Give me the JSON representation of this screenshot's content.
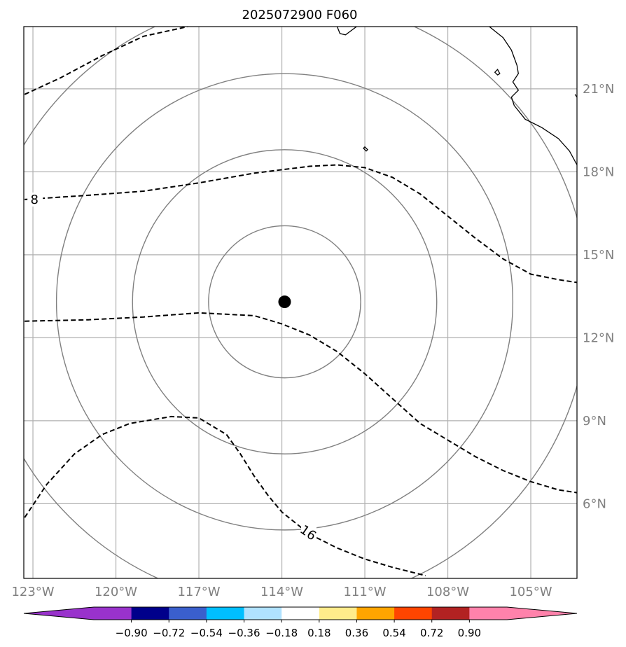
{
  "chart_data": {
    "type": "map",
    "title": "2025072900 F060",
    "x_ticks": [
      -123,
      -120,
      -117,
      -114,
      -111,
      -108,
      -105
    ],
    "x_tick_labels": [
      "123°W",
      "120°W",
      "117°W",
      "114°W",
      "111°W",
      "108°W",
      "105°W"
    ],
    "y_ticks": [
      6,
      9,
      12,
      15,
      18,
      21
    ],
    "y_tick_labels": [
      "6°N",
      "9°N",
      "12°N",
      "15°N",
      "18°N",
      "21°N"
    ],
    "xlim": [
      -123.33,
      -103.33
    ],
    "ylim": [
      3.3,
      23.25
    ],
    "grid": true,
    "center": {
      "lon": -113.9,
      "lat": 13.3
    },
    "range_rings_deg": [
      2.75,
      5.5,
      8.25,
      11.0
    ],
    "contours": [
      {
        "label": "8",
        "dashed": true,
        "points": [
          [
            -123.3,
            17.0
          ],
          [
            -121.0,
            17.15
          ],
          [
            -119.0,
            17.3
          ],
          [
            -117.0,
            17.6
          ],
          [
            -115.0,
            17.95
          ],
          [
            -113.0,
            18.2
          ],
          [
            -112.0,
            18.25
          ],
          [
            -111.0,
            18.15
          ],
          [
            -110.0,
            17.8
          ],
          [
            -109.0,
            17.2
          ],
          [
            -108.0,
            16.4
          ],
          [
            -107.0,
            15.6
          ],
          [
            -106.0,
            14.85
          ],
          [
            -105.0,
            14.3
          ],
          [
            -104.0,
            14.1
          ],
          [
            -103.33,
            14.0
          ]
        ]
      },
      {
        "label": "",
        "dashed": true,
        "points": [
          [
            -123.3,
            12.6
          ],
          [
            -121.0,
            12.65
          ],
          [
            -119.0,
            12.75
          ],
          [
            -117.0,
            12.9
          ],
          [
            -115.0,
            12.8
          ],
          [
            -114.0,
            12.5
          ],
          [
            -113.0,
            12.1
          ],
          [
            -112.0,
            11.5
          ],
          [
            -111.0,
            10.7
          ],
          [
            -110.0,
            9.8
          ],
          [
            -109.0,
            8.9
          ],
          [
            -108.0,
            8.3
          ],
          [
            -107.0,
            7.7
          ],
          [
            -106.0,
            7.2
          ],
          [
            -105.0,
            6.8
          ],
          [
            -104.0,
            6.5
          ],
          [
            -103.33,
            6.4
          ]
        ]
      },
      {
        "label": "16",
        "dashed": true,
        "points": [
          [
            -123.3,
            5.5
          ],
          [
            -122.5,
            6.7
          ],
          [
            -121.5,
            7.8
          ],
          [
            -120.5,
            8.5
          ],
          [
            -119.5,
            8.9
          ],
          [
            -118.0,
            9.15
          ],
          [
            -117.0,
            9.1
          ],
          [
            -116.0,
            8.5
          ],
          [
            -115.5,
            7.8
          ],
          [
            -115.0,
            7.0
          ],
          [
            -114.5,
            6.3
          ],
          [
            -114.0,
            5.7
          ],
          [
            -113.0,
            4.9
          ],
          [
            -112.0,
            4.4
          ],
          [
            -111.0,
            4.0
          ],
          [
            -110.0,
            3.7
          ],
          [
            -108.8,
            3.4
          ]
        ]
      },
      {
        "label": "",
        "dashed": true,
        "points": [
          [
            -123.3,
            20.8
          ],
          [
            -122.0,
            21.4
          ],
          [
            -120.5,
            22.2
          ],
          [
            -119.0,
            22.9
          ],
          [
            -117.4,
            23.25
          ]
        ]
      }
    ],
    "coastlines": [
      {
        "points": [
          [
            -106.5,
            23.25
          ],
          [
            -106.0,
            22.85
          ],
          [
            -105.7,
            22.4
          ],
          [
            -105.5,
            21.85
          ],
          [
            -105.45,
            21.55
          ],
          [
            -105.65,
            21.25
          ],
          [
            -105.45,
            20.95
          ],
          [
            -105.7,
            20.7
          ],
          [
            -105.6,
            20.4
          ],
          [
            -105.2,
            19.9
          ],
          [
            -104.6,
            19.6
          ],
          [
            -104.0,
            19.2
          ],
          [
            -103.6,
            18.75
          ],
          [
            -103.33,
            18.25
          ]
        ]
      },
      {
        "points": [
          [
            -112.0,
            23.25
          ],
          [
            -111.9,
            23.0
          ],
          [
            -111.7,
            22.95
          ],
          [
            -111.5,
            23.1
          ],
          [
            -111.3,
            23.25
          ]
        ]
      },
      {
        "points": [
          [
            -103.4,
            20.8
          ],
          [
            -103.33,
            20.7
          ]
        ]
      }
    ],
    "islands": [
      {
        "points": [
          [
            -106.3,
            21.6
          ],
          [
            -106.2,
            21.5
          ],
          [
            -106.12,
            21.55
          ],
          [
            -106.2,
            21.7
          ],
          [
            -106.3,
            21.6
          ]
        ]
      },
      {
        "points": [
          [
            -111.05,
            18.85
          ],
          [
            -110.95,
            18.75
          ],
          [
            -110.9,
            18.8
          ],
          [
            -111.0,
            18.9
          ],
          [
            -111.05,
            18.85
          ]
        ]
      }
    ],
    "colorbar": {
      "colors": [
        "#9932CC",
        "#00008B",
        "#3A5FCD",
        "#00BFFF",
        "#B0E2FF",
        "#FFFFFF",
        "#FFEC8B",
        "#FFA500",
        "#FF4500",
        "#B22222",
        "#FF82AB"
      ],
      "under_color": "#9932CC",
      "over_color": "#FF82AB",
      "tick_labels": [
        "−0.90",
        "−0.72",
        "−0.54",
        "−0.36",
        "−0.18",
        "0.18",
        "0.36",
        "0.54",
        "0.72",
        "0.90"
      ]
    }
  }
}
